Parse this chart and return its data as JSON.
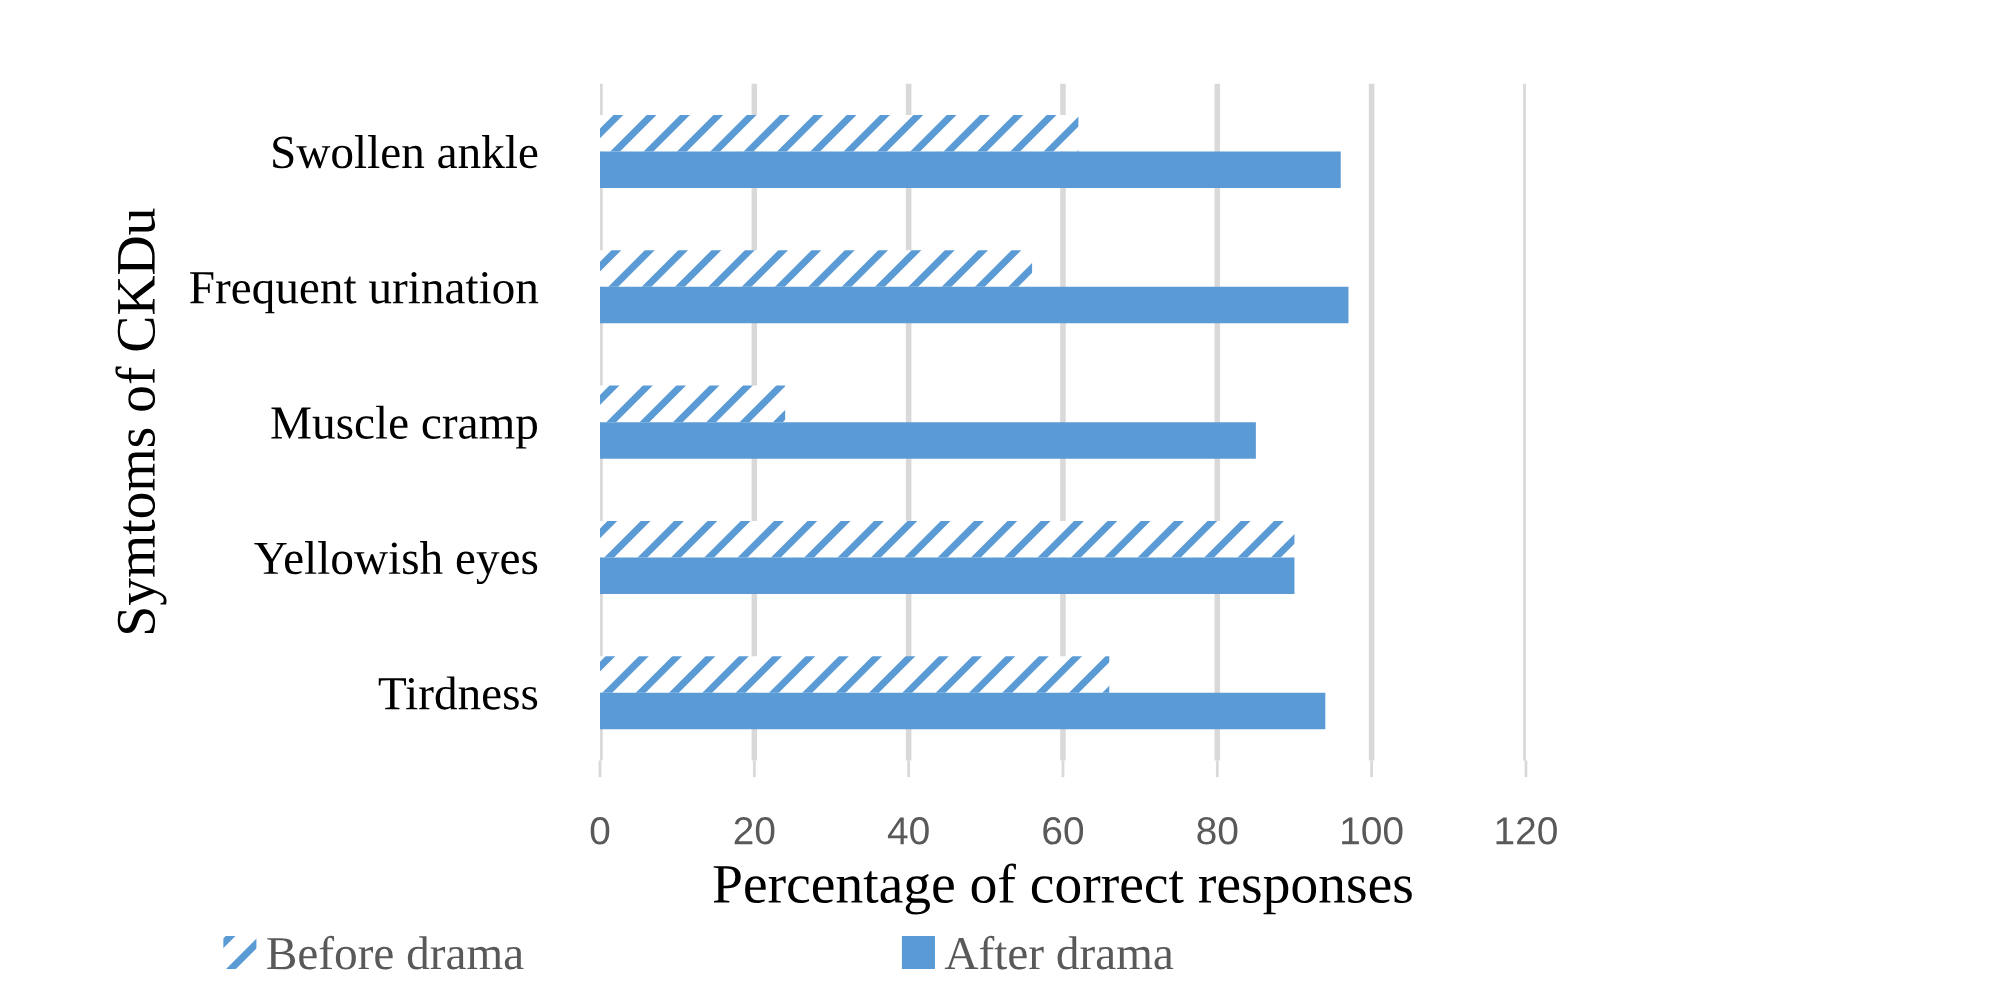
{
  "chart_data": {
    "type": "bar",
    "orientation": "horizontal",
    "xlabel": "Percentage of correct responses",
    "ylabel": "Symtoms of CKDu",
    "categories": [
      "Swollen ankle",
      "Frequent urination",
      "Muscle cramp",
      "Yellowish eyes",
      "Tirdness"
    ],
    "series": [
      {
        "name": "Before drama",
        "color": "#5b9bd5",
        "values": [
          62,
          56,
          24,
          90,
          66
        ]
      },
      {
        "name": "After drama",
        "color": "#5b9bd5",
        "values": [
          96,
          97,
          85,
          90,
          94
        ]
      }
    ],
    "xlim": [
      0,
      120
    ],
    "xticks": [
      0,
      20,
      40,
      60,
      80,
      100,
      120
    ],
    "grid": "x",
    "legend": "bottom"
  }
}
